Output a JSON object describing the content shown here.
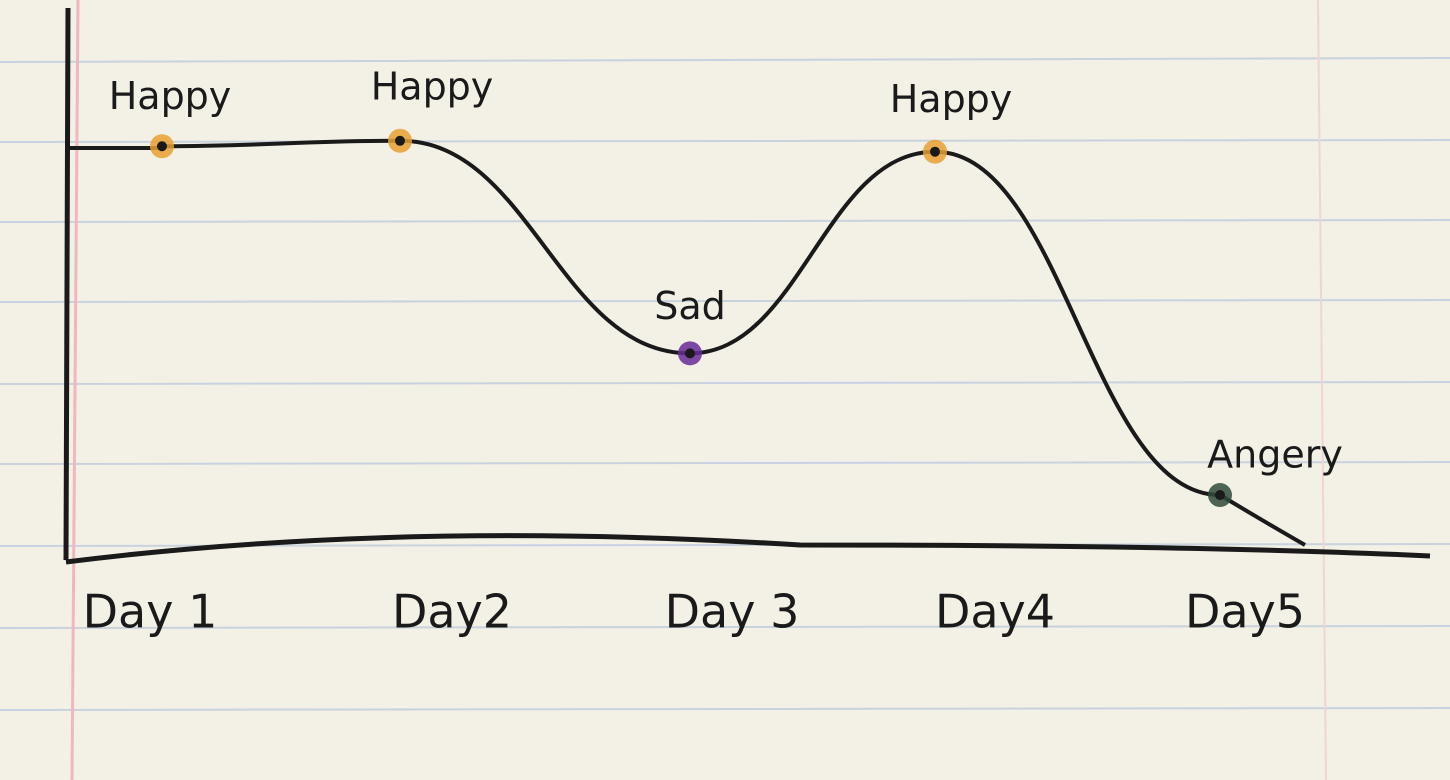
{
  "chart_data": {
    "type": "line",
    "categories": [
      "Day 1",
      "Day2",
      "Day 3",
      "Day4",
      "Day5"
    ],
    "values": [
      7.5,
      7.6,
      3.7,
      7.4,
      1.1
    ],
    "point_labels": [
      "Happy",
      "Happy",
      "Sad",
      "Happy",
      "Angery"
    ],
    "point_colors": [
      "#e8a030",
      "#e8a030",
      "#6a2a9a",
      "#e8a030",
      "#2f4a3a"
    ],
    "color": "#1a1a1a",
    "ylim": [
      0,
      10
    ]
  }
}
